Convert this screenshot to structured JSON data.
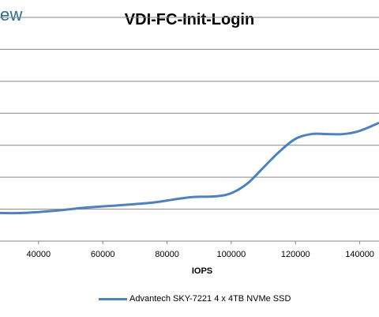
{
  "header": {
    "logo_text": "ew"
  },
  "chart_data": {
    "type": "line",
    "title": "VDI-FC-Init-Login",
    "xlabel": "IOPS",
    "ylabel": "",
    "x_ticks": [
      "40000",
      "60000",
      "80000",
      "100000",
      "120000",
      "140000"
    ],
    "x_tick_values": [
      40000,
      60000,
      80000,
      100000,
      120000,
      140000
    ],
    "xlim": [
      28000,
      146000
    ],
    "ylim": [
      0,
      7
    ],
    "y_gridlines": [
      1,
      2,
      3,
      4,
      5,
      6,
      7
    ],
    "grid": "horizontal",
    "legend_position": "bottom",
    "series": [
      {
        "name": "Advantech SKY-7221 4 x 4TB NVMe SSD",
        "color": "#4f81bd",
        "x": [
          28000,
          35000,
          45000,
          55000,
          65000,
          75000,
          82000,
          88000,
          95000,
          100000,
          105000,
          110000,
          115000,
          120000,
          125000,
          130000,
          135000,
          140000,
          146000
        ],
        "y": [
          0.88,
          0.88,
          0.95,
          1.05,
          1.12,
          1.2,
          1.3,
          1.38,
          1.4,
          1.5,
          1.8,
          2.3,
          2.8,
          3.2,
          3.35,
          3.35,
          3.35,
          3.45,
          3.7
        ]
      }
    ]
  }
}
